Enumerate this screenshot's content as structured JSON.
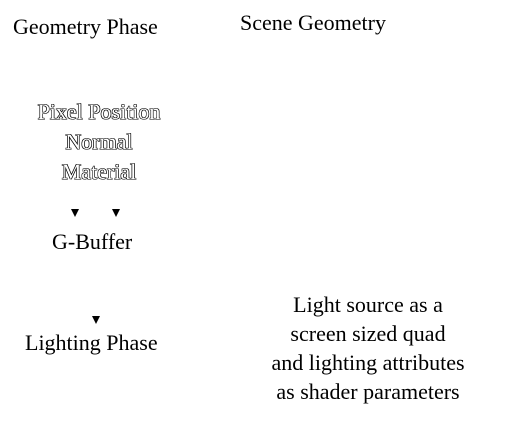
{
  "diagram": {
    "geometry_phase": "Geometry Phase",
    "scene_geometry": "Scene Geometry",
    "attributes": [
      "Pixel Position",
      "Normal",
      "Material"
    ],
    "gbuffer": "G-Buffer",
    "lighting_phase": "Lighting Phase",
    "light_description": [
      "Light source as a",
      "screen sized quad",
      "and lighting attributes",
      "as shader parameters"
    ]
  },
  "icons": {
    "arrowheads": [
      "arrow-down-icon",
      "arrow-down-icon",
      "arrow-down-icon"
    ]
  },
  "colors": {
    "background": "#ffffff",
    "text": "#000000"
  }
}
